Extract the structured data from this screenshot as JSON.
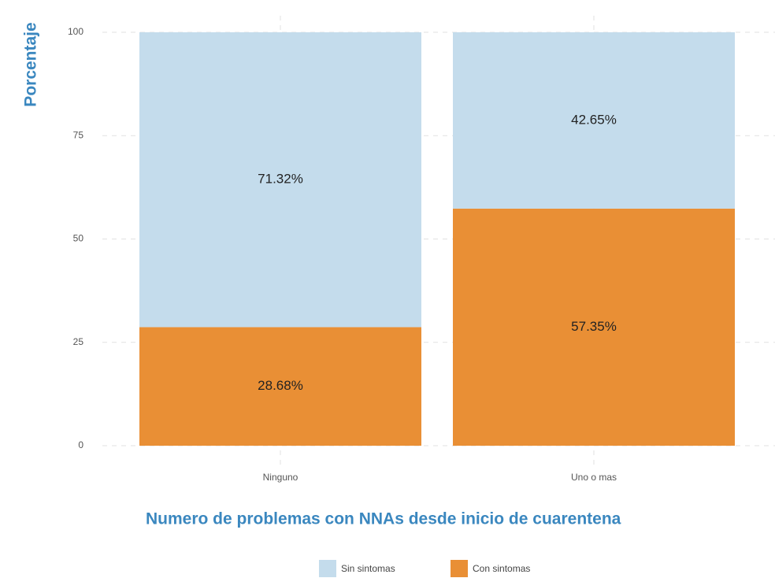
{
  "chart_data": {
    "type": "stacked_bar",
    "x_label": "Numero de problemas con NNAs desde inicio de cuarentena",
    "y_label": "Porcentaje",
    "categories": [
      "Ninguno",
      "Uno o mas"
    ],
    "series": [
      {
        "name": "Sin sintomas",
        "color": "#c4dcec",
        "values": [
          71.32,
          42.65
        ],
        "value_labels": [
          "71.32%",
          "42.65%"
        ]
      },
      {
        "name": "Con sintomas",
        "color": "#e98f35",
        "values": [
          28.68,
          57.35
        ],
        "value_labels": [
          "28.68%",
          "57.35%"
        ]
      }
    ],
    "ylim": [
      0,
      100
    ],
    "yticks": [
      0,
      25,
      50,
      75,
      100
    ],
    "grid": true,
    "legend": "bottom"
  }
}
